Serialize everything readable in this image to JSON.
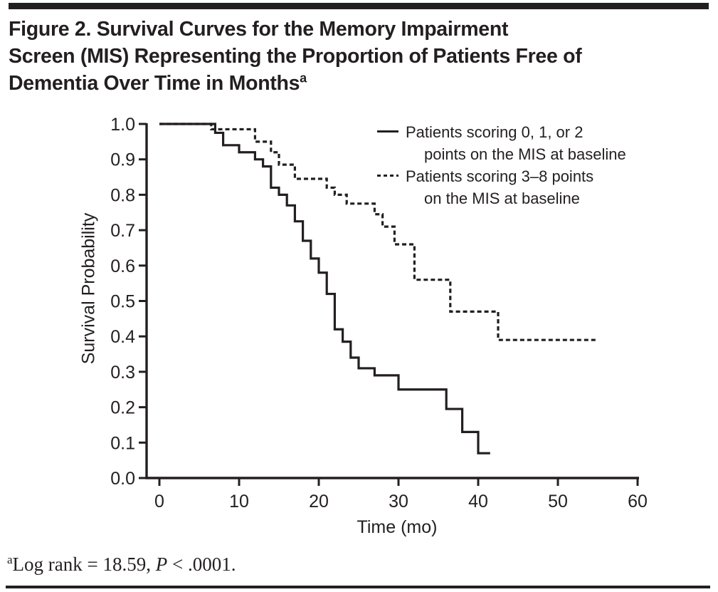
{
  "title": {
    "lines": [
      "Figure 2. Survival Curves for the Memory Impairment",
      "Screen (MIS) Representing the Proportion of Patients Free of",
      "Dementia Over Time in Months"
    ],
    "superscript": "a"
  },
  "footnote": {
    "superscript": "a",
    "text_before_italic": "Log rank = 18.59, ",
    "italic": "P",
    "text_after_italic": " < .0001."
  },
  "colors": {
    "ink": "#231f20",
    "background": "#ffffff"
  },
  "legend": {
    "entries": [
      {
        "style": "solid",
        "line1": "Patients scoring 0, 1, or 2",
        "line2": "points on the MIS at baseline"
      },
      {
        "style": "dashed",
        "line1": "Patients scoring 3–8 points",
        "line2": "on the MIS at baseline"
      }
    ]
  },
  "chart_data": {
    "type": "line",
    "subtype": "kaplan-meier-step",
    "title": "Survival Curves for the Memory Impairment Screen (MIS)",
    "xlabel": "Time (mo)",
    "ylabel": "Survival Probability",
    "xlim": [
      0,
      60
    ],
    "ylim": [
      0.0,
      1.0
    ],
    "x_ticks": [
      "0",
      "10",
      "20",
      "30",
      "40",
      "50",
      "60"
    ],
    "y_ticks": [
      "0.0",
      "0.1",
      "0.2",
      "0.3",
      "0.4",
      "0.5",
      "0.6",
      "0.7",
      "0.8",
      "0.9",
      "1.0"
    ],
    "grid": false,
    "legend_position": "inside-top-right",
    "series": [
      {
        "name": "Patients scoring 0, 1, or 2 points on the MIS at baseline",
        "style": "solid",
        "points": [
          [
            0,
            1.0
          ],
          [
            7,
            0.975
          ],
          [
            8,
            0.94
          ],
          [
            10,
            0.92
          ],
          [
            12,
            0.9
          ],
          [
            13,
            0.88
          ],
          [
            14,
            0.82
          ],
          [
            15,
            0.8
          ],
          [
            16,
            0.77
          ],
          [
            17,
            0.725
          ],
          [
            18,
            0.67
          ],
          [
            19,
            0.62
          ],
          [
            20,
            0.58
          ],
          [
            21,
            0.52
          ],
          [
            22,
            0.42
          ],
          [
            23,
            0.385
          ],
          [
            24,
            0.34
          ],
          [
            25,
            0.31
          ],
          [
            27,
            0.29
          ],
          [
            30,
            0.25
          ],
          [
            36,
            0.195
          ],
          [
            38,
            0.13
          ],
          [
            40,
            0.07
          ]
        ],
        "end_time": 41.5
      },
      {
        "name": "Patients scoring 3–8 points on the MIS at baseline",
        "style": "dashed",
        "points": [
          [
            0,
            1.0
          ],
          [
            6.5,
            0.985
          ],
          [
            12,
            0.95
          ],
          [
            14,
            0.92
          ],
          [
            15,
            0.885
          ],
          [
            17,
            0.845
          ],
          [
            21,
            0.82
          ],
          [
            22,
            0.8
          ],
          [
            23.5,
            0.775
          ],
          [
            27,
            0.745
          ],
          [
            28,
            0.71
          ],
          [
            29.5,
            0.66
          ],
          [
            32,
            0.56
          ],
          [
            36.5,
            0.47
          ],
          [
            42.5,
            0.39
          ]
        ],
        "end_time": 55
      }
    ]
  }
}
